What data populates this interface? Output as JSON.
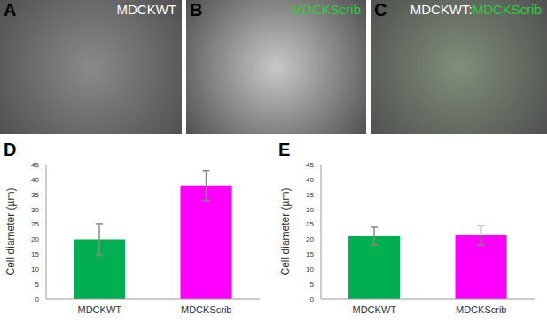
{
  "panels": [
    {
      "letter": "A",
      "label": [
        {
          "text": "MDCKWT",
          "color": "#ffffff"
        }
      ],
      "tint": "#8a8a8a"
    },
    {
      "letter": "B",
      "label": [
        {
          "text": "MDCKScrib",
          "color": "#2ecc40"
        }
      ],
      "tint": "#c8c8c8"
    },
    {
      "letter": "C",
      "label": [
        {
          "text": "MDCKWT:",
          "color": "#ffffff"
        },
        {
          "text": "MDCKScrib",
          "color": "#2ecc40"
        }
      ],
      "tint": "#7f8f78"
    }
  ],
  "chart_data": [
    {
      "type": "bar",
      "panel": "D",
      "y_label": "Cell diameter (µm)",
      "categories": [
        "MDCKWT",
        "MDCKScrib"
      ],
      "values": [
        20,
        38
      ],
      "errors": [
        5.2,
        5
      ],
      "colors": [
        "#00b050",
        "#ff00ff"
      ],
      "ylim": [
        0,
        45
      ],
      "yticks": [
        0,
        5,
        10,
        15,
        20,
        25,
        30,
        35,
        40,
        45
      ],
      "grid": false
    },
    {
      "type": "bar",
      "panel": "E",
      "y_label": "Cell diameter (µm)",
      "categories": [
        "MDCKWT",
        "MDCKScrib"
      ],
      "values": [
        21,
        21.3
      ],
      "errors": [
        3,
        3.2
      ],
      "colors": [
        "#00b050",
        "#ff00ff"
      ],
      "ylim": [
        0,
        45
      ],
      "yticks": [
        0,
        5,
        10,
        15,
        20,
        25,
        30,
        35,
        40,
        45
      ],
      "grid": false
    }
  ]
}
